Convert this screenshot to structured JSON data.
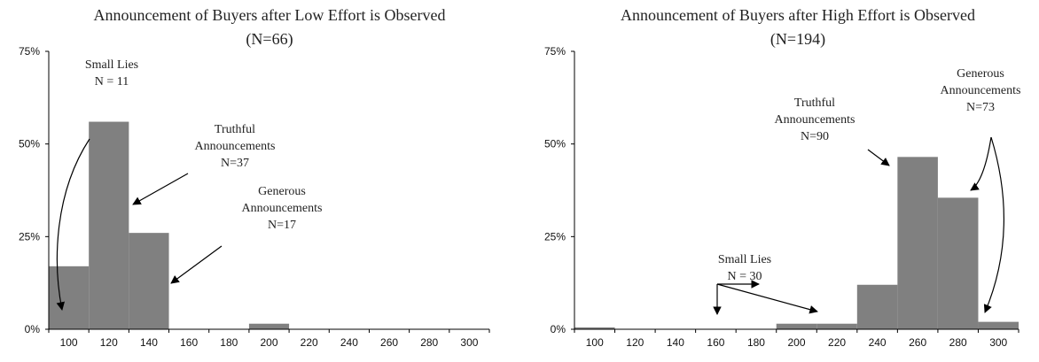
{
  "chart_data": [
    {
      "type": "bar",
      "title": "Announcement of Buyers after Low Effort is Observed",
      "subtitle": "(N=66)",
      "xlabel": "",
      "ylabel": "",
      "x_ticks": [
        "100",
        "120",
        "140",
        "160",
        "180",
        "200",
        "220",
        "240",
        "260",
        "280",
        "300"
      ],
      "y_ticks": [
        "0%",
        "25%",
        "50%",
        "75%"
      ],
      "ylim": [
        0,
        75
      ],
      "bin_edges": [
        90,
        110,
        130,
        150,
        170,
        190,
        210,
        230,
        250,
        270,
        290,
        310
      ],
      "values": [
        17,
        56,
        26,
        0,
        0,
        1.5,
        0,
        0,
        0,
        0,
        0
      ],
      "bar_color": "#808080",
      "annotations": [
        {
          "lines": [
            "Small Lies",
            "N = 11"
          ]
        },
        {
          "lines": [
            "Truthful",
            "Announcements",
            "N=37"
          ]
        },
        {
          "lines": [
            "Generous",
            "Announcements",
            "N=17"
          ]
        }
      ]
    },
    {
      "type": "bar",
      "title": "Announcement of Buyers after High Effort is Observed",
      "subtitle": "(N=194)",
      "xlabel": "",
      "ylabel": "",
      "x_ticks": [
        "100",
        "120",
        "140",
        "160",
        "180",
        "200",
        "220",
        "240",
        "260",
        "280",
        "300"
      ],
      "y_ticks": [
        "0%",
        "25%",
        "50%",
        "75%"
      ],
      "ylim": [
        0,
        75
      ],
      "bin_edges": [
        90,
        110,
        130,
        150,
        170,
        190,
        210,
        230,
        250,
        270,
        290,
        310
      ],
      "values": [
        0.5,
        0,
        0,
        0,
        0,
        1.5,
        1.5,
        12,
        46.5,
        35.5,
        2
      ],
      "bar_color": "#808080",
      "annotations": [
        {
          "lines": [
            "Small Lies",
            "N = 30"
          ]
        },
        {
          "lines": [
            "Truthful",
            "Announcements",
            "N=90"
          ]
        },
        {
          "lines": [
            "Generous",
            "Announcements",
            "N=73"
          ]
        }
      ]
    }
  ]
}
